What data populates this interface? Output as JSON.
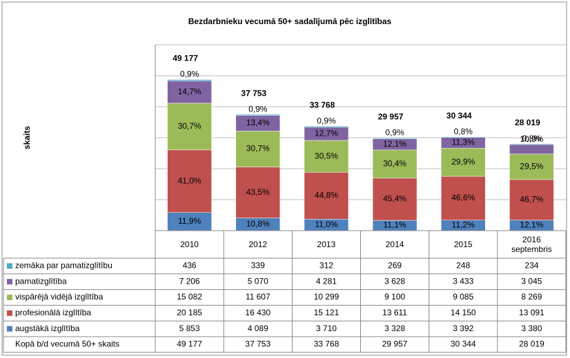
{
  "chart_data": {
    "type": "stacked_bar",
    "title": "Bezdarbnieku vecumā 50+ sadalījumā pēc izglītības",
    "y_label": "skaits",
    "categories": [
      "2010",
      "2012",
      "2013",
      "2014",
      "2015",
      "2016 septembris"
    ],
    "ylim": [
      0,
      60000
    ],
    "yticks": [
      0,
      10000,
      20000,
      30000,
      40000,
      50000,
      60000
    ],
    "grid": true,
    "series": [
      {
        "name": "zemāka par pamatizglītību",
        "color": "#4bacc6",
        "values": [
          436,
          339,
          312,
          269,
          248,
          234
        ],
        "value_labels": [
          "436",
          "339",
          "312",
          "269",
          "248",
          "234"
        ],
        "percent_values": [
          0.9,
          0.9,
          0.9,
          0.9,
          0.8,
          0.8
        ],
        "percent_labels": [
          "0,9%",
          "0,9%",
          "0,9%",
          "0,9%",
          "0,8%",
          "0,8%"
        ]
      },
      {
        "name": "pamatizglītība",
        "color": "#8064a2",
        "values": [
          7206,
          5070,
          4281,
          3628,
          3433,
          3045
        ],
        "value_labels": [
          "7 206",
          "5 070",
          "4 281",
          "3 628",
          "3 433",
          "3 045"
        ],
        "percent_values": [
          14.7,
          13.4,
          12.7,
          12.1,
          11.3,
          10.9
        ],
        "percent_labels": [
          "14,7%",
          "13,4%",
          "12,7%",
          "12,1%",
          "11,3%",
          "10,9%"
        ]
      },
      {
        "name": "vispārējā vidējā izglītība",
        "color": "#9bbb59",
        "values": [
          15082,
          11607,
          10299,
          9100,
          9085,
          8269
        ],
        "value_labels": [
          "15 082",
          "11 607",
          "10 299",
          "9 100",
          "9 085",
          "8 269"
        ],
        "percent_values": [
          30.7,
          30.7,
          30.5,
          30.4,
          29.9,
          29.5
        ],
        "percent_labels": [
          "30,7%",
          "30,7%",
          "30,5%",
          "30,4%",
          "29,9%",
          "29,5%"
        ]
      },
      {
        "name": "profesionālā izglītība",
        "color": "#c0504d",
        "values": [
          20185,
          16430,
          15121,
          13611,
          14150,
          13091
        ],
        "value_labels": [
          "20 185",
          "16 430",
          "15 121",
          "13 611",
          "14 150",
          "13 091"
        ],
        "percent_values": [
          41.0,
          43.5,
          44.8,
          45.4,
          46.6,
          46.7
        ],
        "percent_labels": [
          "41,0%",
          "43,5%",
          "44,8%",
          "45,4%",
          "46,6%",
          "46,7%"
        ]
      },
      {
        "name": "augstākā izglītība",
        "color": "#4f81bd",
        "values": [
          5853,
          4089,
          3710,
          3328,
          3392,
          3380
        ],
        "value_labels": [
          "5 853",
          "4 089",
          "3 710",
          "3 328",
          "3 392",
          "3 380"
        ],
        "percent_values": [
          11.9,
          10.8,
          11.0,
          11.1,
          11.2,
          12.1
        ],
        "percent_labels": [
          "11,9%",
          "10,8%",
          "11,0%",
          "11,1%",
          "11,2%",
          "12,1%"
        ]
      }
    ],
    "totals_name": "Kopā b/d vecumā 50+ skaits",
    "totals": [
      49177,
      37753,
      33768,
      29957,
      30344,
      28019
    ],
    "total_labels": [
      "49 177",
      "37 753",
      "33 768",
      "29 957",
      "30 344",
      "28 019"
    ]
  }
}
